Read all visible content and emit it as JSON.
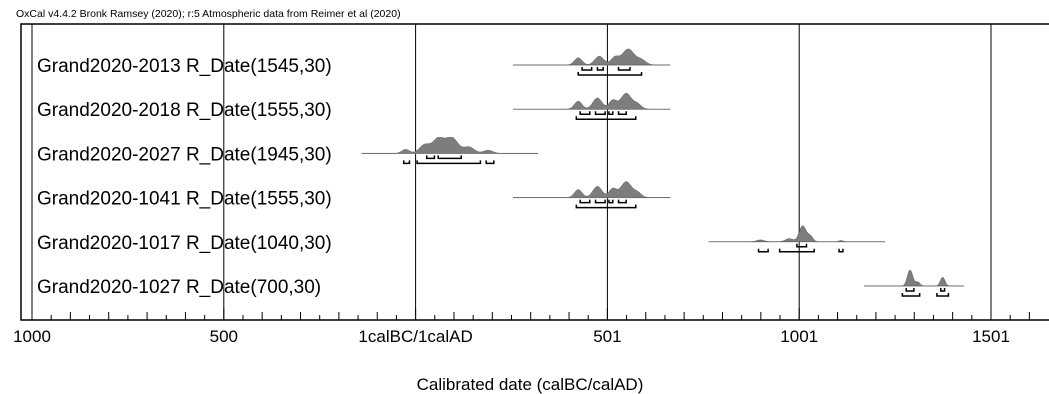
{
  "chart_data": {
    "type": "multiplot",
    "header": "OxCal v4.4.2 Bronk Ramsey (2020); r:5 Atmospheric data from Reimer et al (2020)",
    "xlabel": "Calibrated date (calBC/calAD)",
    "x_range": [
      -1020,
      1650
    ],
    "major_ticks": [
      {
        "value": -999,
        "label": "1000"
      },
      {
        "value": -499,
        "label": "500"
      },
      {
        "value": 1,
        "label": "1calBC/1calAD"
      },
      {
        "value": 501,
        "label": "501"
      },
      {
        "value": 1001,
        "label": "1001"
      },
      {
        "value": 1501,
        "label": "1501"
      }
    ],
    "grid": "vertical lines at major ticks",
    "rows": [
      {
        "label": "Grand2020-2013 R_Date(1545,30)",
        "tail": [
          255,
          665
        ],
        "peaks": [
          {
            "x": 425,
            "h": 0.45,
            "w": 10
          },
          {
            "x": 480,
            "h": 0.55,
            "w": 12
          },
          {
            "x": 520,
            "h": 0.45,
            "w": 10
          },
          {
            "x": 555,
            "h": 1.0,
            "w": 16
          },
          {
            "x": 590,
            "h": 0.3,
            "w": 12
          }
        ],
        "ranges_68": [
          [
            435,
            460
          ],
          [
            475,
            490
          ],
          [
            530,
            560
          ]
        ],
        "ranges_95": [
          [
            425,
            590
          ]
        ]
      },
      {
        "label": "Grand2020-2018 R_Date(1555,30)",
        "tail": [
          255,
          665
        ],
        "peaks": [
          {
            "x": 425,
            "h": 0.5,
            "w": 10
          },
          {
            "x": 475,
            "h": 0.7,
            "w": 12
          },
          {
            "x": 515,
            "h": 0.55,
            "w": 10
          },
          {
            "x": 550,
            "h": 1.0,
            "w": 14
          },
          {
            "x": 580,
            "h": 0.3,
            "w": 10
          }
        ],
        "ranges_68": [
          [
            430,
            455
          ],
          [
            470,
            495
          ],
          [
            505,
            515
          ],
          [
            530,
            550
          ]
        ],
        "ranges_95": [
          [
            420,
            575
          ]
        ]
      },
      {
        "label": "Grand2020-2027 R_Date(1945,30)",
        "tail": [
          -140,
          320
        ],
        "peaks": [
          {
            "x": -25,
            "h": 0.25,
            "w": 10
          },
          {
            "x": 25,
            "h": 0.55,
            "w": 14
          },
          {
            "x": 60,
            "h": 0.9,
            "w": 14
          },
          {
            "x": 95,
            "h": 1.0,
            "w": 16
          },
          {
            "x": 140,
            "h": 0.4,
            "w": 14
          },
          {
            "x": 190,
            "h": 0.2,
            "w": 12
          }
        ],
        "ranges_68": [
          [
            30,
            50
          ],
          [
            60,
            120
          ]
        ],
        "ranges_95": [
          [
            -30,
            -15
          ],
          [
            5,
            170
          ],
          [
            185,
            205
          ]
        ]
      },
      {
        "label": "Grand2020-1041 R_Date(1555,30)",
        "tail": [
          255,
          665
        ],
        "peaks": [
          {
            "x": 425,
            "h": 0.5,
            "w": 10
          },
          {
            "x": 475,
            "h": 0.7,
            "w": 12
          },
          {
            "x": 515,
            "h": 0.55,
            "w": 10
          },
          {
            "x": 550,
            "h": 1.0,
            "w": 14
          },
          {
            "x": 580,
            "h": 0.3,
            "w": 10
          }
        ],
        "ranges_68": [
          [
            430,
            455
          ],
          [
            470,
            495
          ],
          [
            505,
            515
          ],
          [
            530,
            550
          ]
        ],
        "ranges_95": [
          [
            420,
            575
          ]
        ]
      },
      {
        "label": "Grand2020-1017 R_Date(1040,30)",
        "tail": [
          765,
          1225
        ],
        "peaks": [
          {
            "x": 900,
            "h": 0.12,
            "w": 10
          },
          {
            "x": 975,
            "h": 0.2,
            "w": 10
          },
          {
            "x": 1010,
            "h": 1.0,
            "w": 9
          },
          {
            "x": 1030,
            "h": 0.35,
            "w": 7
          },
          {
            "x": 1110,
            "h": 0.08,
            "w": 6
          }
        ],
        "ranges_68": [
          [
            995,
            1020
          ]
        ],
        "ranges_95": [
          [
            895,
            920
          ],
          [
            950,
            1040
          ],
          [
            1105,
            1115
          ]
        ]
      },
      {
        "label": "Grand2020-1027 R_Date(700,30)",
        "tail": [
          1170,
          1430
        ],
        "peaks": [
          {
            "x": 1290,
            "h": 1.0,
            "w": 7
          },
          {
            "x": 1310,
            "h": 0.25,
            "w": 6
          },
          {
            "x": 1375,
            "h": 0.55,
            "w": 6
          }
        ],
        "ranges_68": [
          [
            1280,
            1300
          ],
          [
            1370,
            1380
          ]
        ],
        "ranges_95": [
          [
            1270,
            1315
          ],
          [
            1360,
            1390
          ]
        ]
      }
    ]
  }
}
